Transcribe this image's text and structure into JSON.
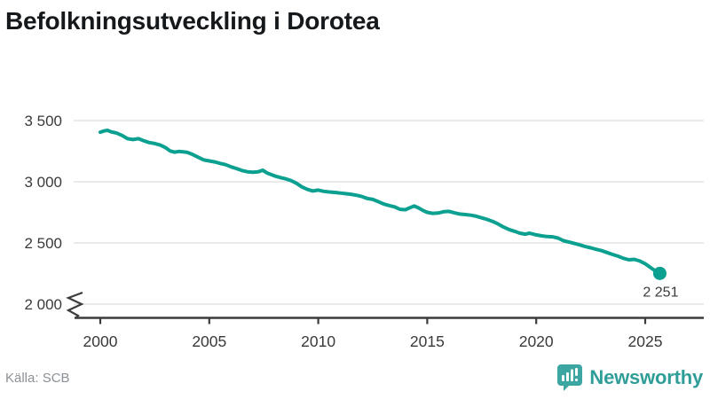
{
  "title": "Befolkningsutveckling i Dorotea",
  "source": "Källa: SCB",
  "logo": {
    "text": "Newsworthy",
    "icon_color": "#3CA7A2",
    "text_color": "#2F9D98"
  },
  "chart_data": {
    "type": "line",
    "title": "Befolkningsutveckling i Dorotea",
    "xlabel": "",
    "ylabel": "",
    "x_ticks": [
      2000,
      2005,
      2010,
      2015,
      2020,
      2025
    ],
    "x_tick_labels": [
      "2000",
      "2005",
      "2010",
      "2015",
      "2020",
      "2025"
    ],
    "y_ticks": [
      3500,
      3000,
      2500,
      2000
    ],
    "y_tick_labels": [
      "3 500",
      "3 000",
      "2 500",
      "2 000"
    ],
    "ylim_shown": [
      2000,
      3500
    ],
    "axis_break_at_bottom": true,
    "grid": "horizontal",
    "legend": "none",
    "end_label": "2 251",
    "end_value": 2251,
    "line_color": "#0BA08F",
    "grid_color": "#E4E4E4",
    "axis_color": "#3C3C3C",
    "tick_label_color": "#3A3A3A",
    "series": [
      {
        "name": "Befolkning",
        "points": [
          [
            2000.0,
            3405
          ],
          [
            2000.17,
            3415
          ],
          [
            2000.33,
            3420
          ],
          [
            2000.5,
            3408
          ],
          [
            2000.75,
            3398
          ],
          [
            2001.0,
            3378
          ],
          [
            2001.25,
            3352
          ],
          [
            2001.5,
            3345
          ],
          [
            2001.75,
            3352
          ],
          [
            2002.0,
            3335
          ],
          [
            2002.25,
            3320
          ],
          [
            2002.5,
            3312
          ],
          [
            2002.75,
            3300
          ],
          [
            2003.0,
            3278
          ],
          [
            2003.2,
            3252
          ],
          [
            2003.4,
            3242
          ],
          [
            2003.6,
            3248
          ],
          [
            2003.8,
            3245
          ],
          [
            2004.0,
            3240
          ],
          [
            2004.25,
            3222
          ],
          [
            2004.5,
            3200
          ],
          [
            2004.75,
            3178
          ],
          [
            2005.0,
            3170
          ],
          [
            2005.25,
            3162
          ],
          [
            2005.5,
            3150
          ],
          [
            2005.75,
            3140
          ],
          [
            2006.0,
            3122
          ],
          [
            2006.25,
            3108
          ],
          [
            2006.5,
            3092
          ],
          [
            2006.75,
            3082
          ],
          [
            2007.0,
            3078
          ],
          [
            2007.25,
            3082
          ],
          [
            2007.45,
            3094
          ],
          [
            2007.65,
            3072
          ],
          [
            2007.85,
            3058
          ],
          [
            2008.0,
            3048
          ],
          [
            2008.25,
            3035
          ],
          [
            2008.5,
            3024
          ],
          [
            2008.75,
            3010
          ],
          [
            2009.0,
            2988
          ],
          [
            2009.25,
            2958
          ],
          [
            2009.5,
            2938
          ],
          [
            2009.75,
            2925
          ],
          [
            2010.0,
            2932
          ],
          [
            2010.25,
            2922
          ],
          [
            2010.5,
            2917
          ],
          [
            2010.75,
            2913
          ],
          [
            2011.0,
            2908
          ],
          [
            2011.25,
            2903
          ],
          [
            2011.5,
            2898
          ],
          [
            2011.75,
            2890
          ],
          [
            2012.0,
            2880
          ],
          [
            2012.25,
            2863
          ],
          [
            2012.5,
            2856
          ],
          [
            2012.75,
            2838
          ],
          [
            2013.0,
            2818
          ],
          [
            2013.25,
            2806
          ],
          [
            2013.5,
            2795
          ],
          [
            2013.75,
            2775
          ],
          [
            2014.0,
            2772
          ],
          [
            2014.2,
            2788
          ],
          [
            2014.4,
            2802
          ],
          [
            2014.6,
            2786
          ],
          [
            2014.8,
            2766
          ],
          [
            2015.0,
            2750
          ],
          [
            2015.25,
            2742
          ],
          [
            2015.5,
            2744
          ],
          [
            2015.75,
            2755
          ],
          [
            2016.0,
            2758
          ],
          [
            2016.25,
            2746
          ],
          [
            2016.5,
            2736
          ],
          [
            2016.75,
            2732
          ],
          [
            2017.0,
            2727
          ],
          [
            2017.25,
            2718
          ],
          [
            2017.5,
            2705
          ],
          [
            2017.75,
            2692
          ],
          [
            2018.0,
            2676
          ],
          [
            2018.25,
            2655
          ],
          [
            2018.5,
            2630
          ],
          [
            2018.75,
            2610
          ],
          [
            2019.0,
            2596
          ],
          [
            2019.25,
            2580
          ],
          [
            2019.5,
            2572
          ],
          [
            2019.7,
            2580
          ],
          [
            2020.0,
            2566
          ],
          [
            2020.25,
            2558
          ],
          [
            2020.5,
            2552
          ],
          [
            2020.75,
            2550
          ],
          [
            2021.0,
            2540
          ],
          [
            2021.25,
            2518
          ],
          [
            2021.5,
            2508
          ],
          [
            2021.75,
            2496
          ],
          [
            2022.0,
            2484
          ],
          [
            2022.25,
            2470
          ],
          [
            2022.5,
            2460
          ],
          [
            2022.75,
            2448
          ],
          [
            2023.0,
            2437
          ],
          [
            2023.25,
            2422
          ],
          [
            2023.5,
            2406
          ],
          [
            2023.75,
            2392
          ],
          [
            2024.0,
            2375
          ],
          [
            2024.25,
            2362
          ],
          [
            2024.5,
            2366
          ],
          [
            2024.75,
            2352
          ],
          [
            2025.0,
            2330
          ],
          [
            2025.2,
            2304
          ],
          [
            2025.4,
            2280
          ],
          [
            2025.67,
            2251
          ]
        ]
      }
    ]
  }
}
